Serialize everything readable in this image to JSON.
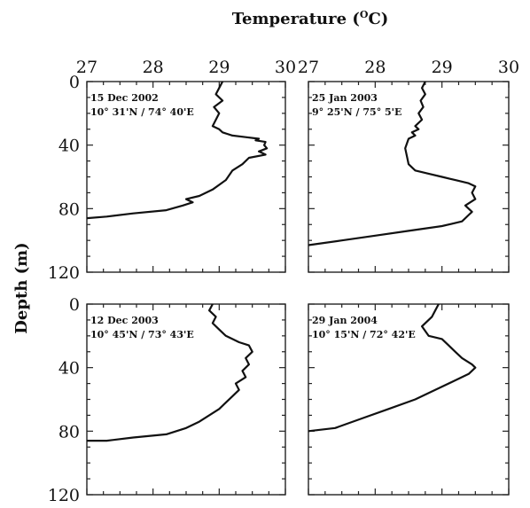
{
  "chart_data": {
    "xlabel": "Temperature (",
    "xlabel_sup": "O",
    "xlabel_suffix": "C)",
    "ylabel": "Depth (m)",
    "panels": [
      {
        "type": "line",
        "annotation": [
          "15 Dec 2002",
          "10° 31'N / 74° 40'E"
        ],
        "xlim": [
          27,
          30
        ],
        "ylim": [
          0,
          120
        ],
        "y_inverted": true,
        "xticks": [
          27,
          28,
          29,
          30
        ],
        "yticks": [
          0,
          40,
          80,
          120
        ],
        "temperature": [
          29.05,
          29.0,
          28.95,
          29.05,
          28.92,
          29.0,
          28.95,
          28.9,
          29.0,
          29.05,
          29.2,
          29.4,
          29.6,
          29.55,
          29.7,
          29.68,
          29.72,
          29.6,
          29.7,
          29.45,
          29.35,
          29.2,
          29.1,
          28.9,
          28.7,
          28.5,
          28.6,
          28.45,
          28.2,
          27.7,
          27.3,
          27.0
        ],
        "depth": [
          0,
          4,
          8,
          12,
          16,
          20,
          24,
          28,
          30,
          32,
          34,
          35,
          36,
          37,
          38,
          40,
          42,
          44,
          46,
          48,
          52,
          56,
          62,
          68,
          72,
          74,
          76,
          78,
          81,
          83,
          85,
          86
        ]
      },
      {
        "type": "line",
        "annotation": [
          "25 Jan 2003",
          "9° 25'N / 75° 5'E"
        ],
        "xlim": [
          27,
          30
        ],
        "ylim": [
          0,
          120
        ],
        "y_inverted": true,
        "xticks": [
          27,
          28,
          29,
          30
        ],
        "yticks": [
          0,
          40,
          80,
          120
        ],
        "temperature": [
          28.75,
          28.7,
          28.75,
          28.68,
          28.72,
          28.65,
          28.7,
          28.6,
          28.65,
          28.55,
          28.6,
          28.5,
          28.45,
          28.48,
          28.5,
          28.6,
          28.8,
          29.0,
          29.2,
          29.4,
          29.5,
          29.45,
          29.5,
          29.35,
          29.45,
          29.4,
          29.3,
          29.0,
          28.5,
          28.0,
          27.5,
          27.0
        ],
        "depth": [
          0,
          4,
          8,
          12,
          16,
          20,
          24,
          28,
          30,
          32,
          34,
          36,
          42,
          48,
          52,
          56,
          58,
          60,
          62,
          64,
          66,
          70,
          74,
          78,
          82,
          84,
          88,
          91,
          94,
          97,
          100,
          103
        ]
      },
      {
        "type": "line",
        "annotation": [
          "12 Dec 2003",
          "10° 45'N / 73° 43'E"
        ],
        "xlim": [
          27,
          30
        ],
        "ylim": [
          0,
          120
        ],
        "y_inverted": true,
        "xticks": [
          27,
          28,
          29,
          30
        ],
        "yticks": [
          0,
          40,
          80,
          120
        ],
        "temperature": [
          28.9,
          28.85,
          28.95,
          28.9,
          29.0,
          29.1,
          29.2,
          29.3,
          29.45,
          29.5,
          29.4,
          29.45,
          29.35,
          29.4,
          29.25,
          29.3,
          29.2,
          29.1,
          29.0,
          28.85,
          28.7,
          28.5,
          28.2,
          27.7,
          27.3,
          27.0
        ],
        "depth": [
          0,
          4,
          8,
          12,
          16,
          20,
          22,
          24,
          26,
          30,
          34,
          38,
          42,
          46,
          50,
          54,
          58,
          62,
          66,
          70,
          74,
          78,
          82,
          84,
          86,
          86
        ]
      },
      {
        "type": "line",
        "annotation": [
          "29 Jan 2004",
          "10° 15'N / 72° 42'E"
        ],
        "xlim": [
          27,
          30
        ],
        "ylim": [
          0,
          120
        ],
        "y_inverted": true,
        "xticks": [
          27,
          28,
          29,
          30
        ],
        "yticks": [
          0,
          40,
          80,
          120
        ],
        "temperature": [
          28.95,
          28.9,
          28.85,
          28.7,
          28.8,
          29.0,
          29.1,
          29.2,
          29.3,
          29.45,
          29.5,
          29.4,
          29.2,
          28.9,
          28.6,
          28.2,
          27.8,
          27.4,
          27.0
        ],
        "depth": [
          0,
          4,
          8,
          14,
          20,
          22,
          26,
          30,
          34,
          38,
          40,
          44,
          48,
          54,
          60,
          66,
          72,
          78,
          80
        ]
      }
    ]
  }
}
